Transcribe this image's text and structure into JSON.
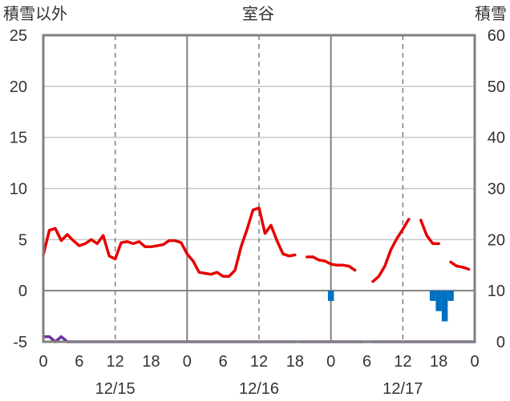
{
  "chart_data": {
    "type": "line",
    "title": "室谷",
    "ylabel_left": "積雪以外",
    "ylabel_right": "積雪",
    "ylim_left": [
      -5,
      25
    ],
    "ylim_right": [
      0,
      60
    ],
    "yticks_left": [
      "25",
      "20",
      "15",
      "10",
      "5",
      "0",
      "-5"
    ],
    "yticks_right": [
      "60",
      "50",
      "40",
      "30",
      "20",
      "10",
      "0"
    ],
    "x_hours_range": [
      0,
      72
    ],
    "xtick_labels": [
      "0",
      "6",
      "12",
      "18",
      "0",
      "6",
      "12",
      "18",
      "0",
      "6",
      "12",
      "18",
      "0"
    ],
    "date_labels": [
      "12/15",
      "12/16",
      "12/17"
    ],
    "grid": true,
    "series": [
      {
        "color": "#e60000",
        "axis": "left",
        "segments": [
          [
            [
              0,
              3.5
            ],
            [
              1,
              5.9
            ],
            [
              2,
              6.1
            ],
            [
              3,
              4.9
            ],
            [
              4,
              5.5
            ],
            [
              5,
              4.9
            ],
            [
              6,
              4.4
            ],
            [
              7,
              4.6
            ],
            [
              8,
              5.0
            ],
            [
              9,
              4.6
            ],
            [
              10,
              5.4
            ],
            [
              11,
              3.4
            ],
            [
              12,
              3.1
            ],
            [
              13,
              4.7
            ],
            [
              14,
              4.8
            ],
            [
              15,
              4.6
            ],
            [
              16,
              4.8
            ],
            [
              17,
              4.3
            ],
            [
              18,
              4.3
            ],
            [
              19,
              4.4
            ],
            [
              20,
              4.5
            ],
            [
              21,
              4.9
            ],
            [
              22,
              4.9
            ],
            [
              23,
              4.7
            ],
            [
              24,
              3.6
            ],
            [
              25,
              2.9
            ],
            [
              26,
              1.8
            ],
            [
              27,
              1.7
            ],
            [
              28,
              1.6
            ],
            [
              29,
              1.8
            ],
            [
              30,
              1.4
            ],
            [
              31,
              1.4
            ],
            [
              32,
              2.0
            ],
            [
              33,
              4.3
            ],
            [
              34,
              6.0
            ],
            [
              35,
              7.9
            ],
            [
              36,
              8.1
            ],
            [
              37,
              5.6
            ],
            [
              38,
              6.4
            ],
            [
              39,
              4.9
            ],
            [
              40,
              3.6
            ],
            [
              41,
              3.4
            ],
            [
              42,
              3.5
            ]
          ],
          [
            [
              44,
              3.3
            ],
            [
              45,
              3.3
            ]
          ],
          [
            [
              45,
              3.3
            ],
            [
              46,
              3.0
            ],
            [
              47,
              2.9
            ],
            [
              48,
              2.6
            ],
            [
              49,
              2.5
            ],
            [
              50,
              2.5
            ],
            [
              51,
              2.4
            ],
            [
              52,
              2.0
            ]
          ],
          [
            [
              55,
              0.9
            ],
            [
              56,
              1.4
            ],
            [
              57,
              2.4
            ],
            [
              58,
              4.0
            ],
            [
              59,
              5.1
            ],
            [
              60,
              6.0
            ],
            [
              61,
              7.0
            ]
          ],
          [
            [
              63,
              6.9
            ],
            [
              64,
              5.4
            ],
            [
              65,
              4.6
            ],
            [
              66,
              4.6
            ]
          ],
          [
            [
              68,
              2.8
            ],
            [
              69,
              2.4
            ],
            [
              70,
              2.3
            ],
            [
              71,
              2.1
            ]
          ]
        ]
      },
      {
        "color": "#7030a0",
        "axis": "left",
        "segments": [
          [
            [
              0,
              -4.5
            ],
            [
              1,
              -4.5
            ],
            [
              2,
              -5.0
            ],
            [
              3,
              -4.5
            ],
            [
              4,
              -5.0
            ],
            [
              42,
              -5.0
            ]
          ],
          [
            [
              43,
              -5.0
            ],
            [
              53,
              -5.0
            ]
          ],
          [
            [
              55,
              -5.0
            ],
            [
              72,
              -5.0
            ]
          ]
        ]
      },
      {
        "color": "#888888",
        "axis": "left",
        "segments": [
          [
            [
              42,
              -5.0
            ],
            [
              43,
              -5.0
            ]
          ],
          [
            [
              53,
              -5.0
            ],
            [
              55,
              -5.0
            ]
          ]
        ]
      }
    ],
    "snowfall_bars": {
      "color": "#0070c0",
      "from_y_right": 10,
      "axis": "right",
      "bars": [
        {
          "x": 48,
          "depth": 2
        },
        {
          "x": 65,
          "depth": 2
        },
        {
          "x": 66,
          "depth": 4
        },
        {
          "x": 67,
          "depth": 6
        },
        {
          "x": 68,
          "depth": 2
        }
      ]
    }
  }
}
